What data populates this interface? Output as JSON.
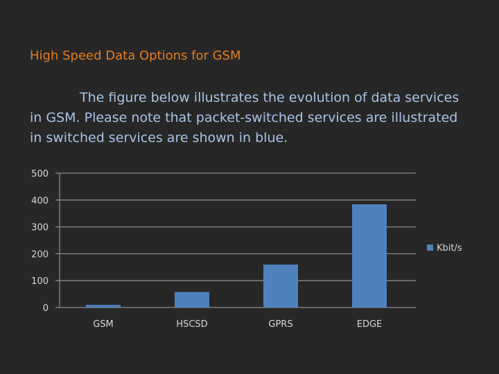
{
  "slide": {
    "title": "High Speed Data Options for GSM",
    "body_lines": [
      "The figure below illustrates the evolution of data services",
      "in GSM. Please note that packet-switched services are illustrated",
      "in switched services are shown in blue."
    ]
  },
  "colors": {
    "background": "#272727",
    "title": "#e67e22",
    "body_text": "#a8c4e8",
    "bar": "#4f81bd",
    "grid": "#8a8a8a",
    "axis_text": "#d8d8d8"
  },
  "chart_data": {
    "type": "bar",
    "categories": [
      "GSM",
      "HSCSD",
      "GPRS",
      "EDGE"
    ],
    "series": [
      {
        "name": "Kbit/s",
        "values": [
          9.6,
          57.6,
          160,
          384
        ]
      }
    ],
    "yticks": [
      "0",
      "100",
      "200",
      "300",
      "400",
      "500"
    ],
    "ylim": [
      0,
      500
    ],
    "grid": true,
    "legend_position": "right"
  }
}
